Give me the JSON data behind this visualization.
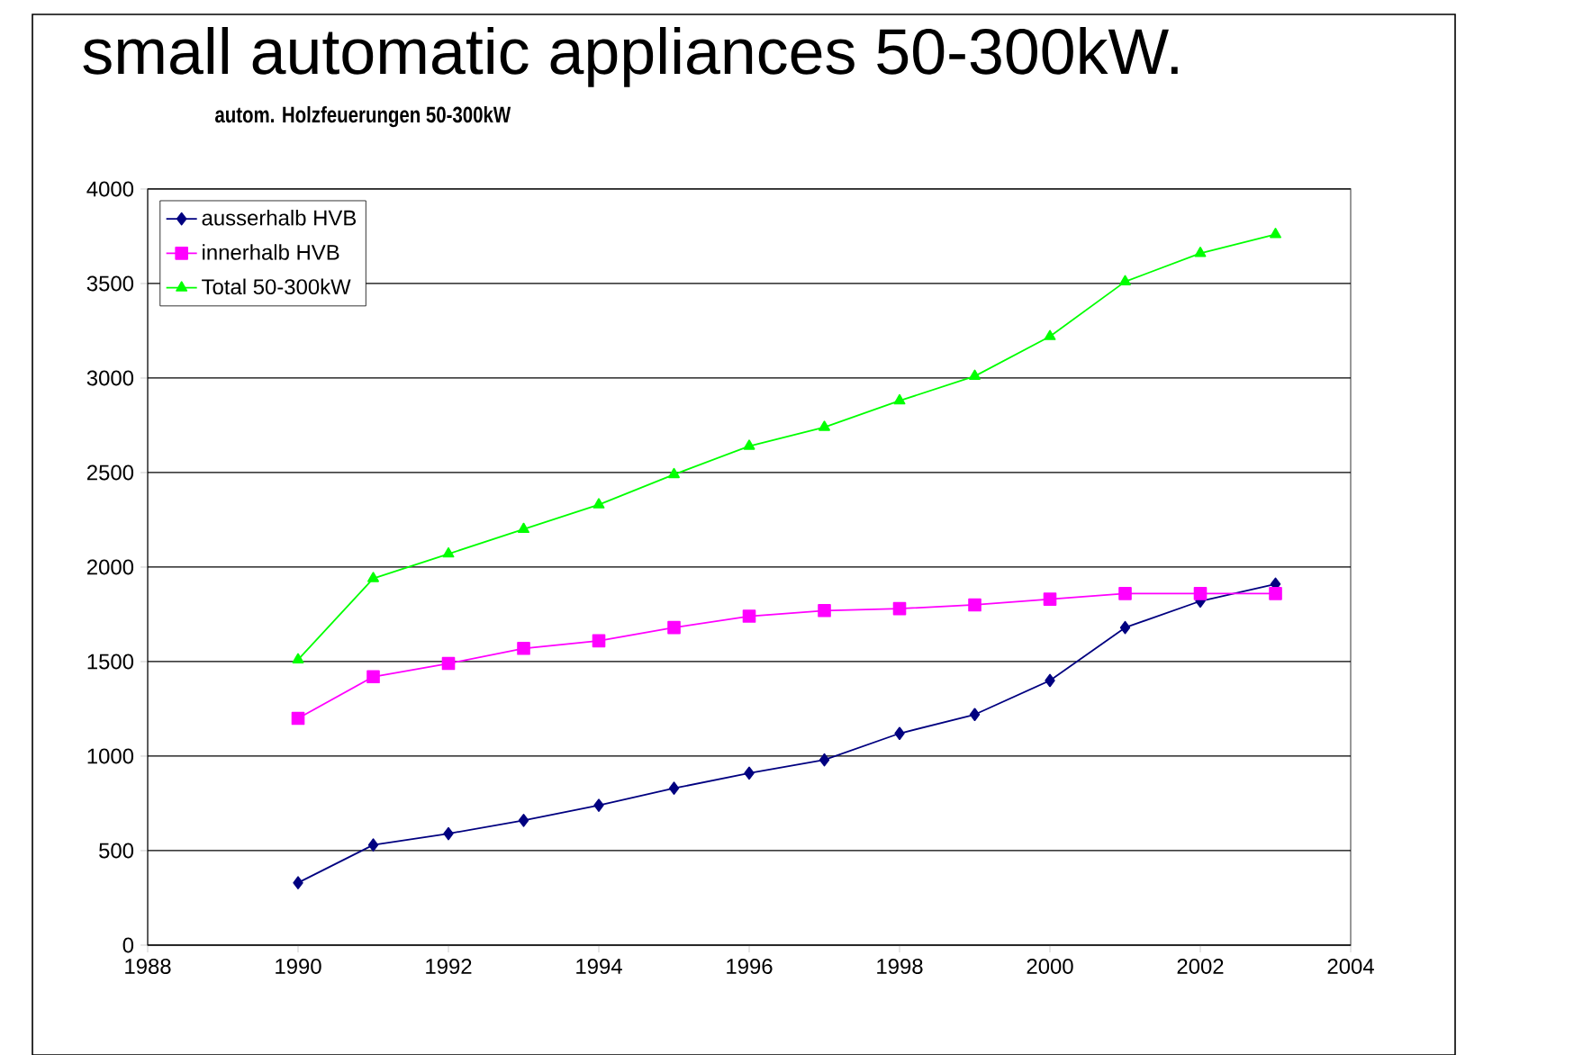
{
  "chart_data": {
    "type": "line",
    "title": "small automatic appliances 50-300kW.",
    "subtitle": "autom. Holzfeuerungen 50-300kW",
    "x": [
      1990,
      1991,
      1992,
      1993,
      1994,
      1995,
      1996,
      1997,
      1998,
      1999,
      2000,
      2001,
      2002,
      2003
    ],
    "series": [
      {
        "name": "ausserhalb HVB",
        "color": "#000080",
        "marker": "diamond",
        "values": [
          330,
          530,
          590,
          660,
          740,
          830,
          910,
          980,
          1120,
          1220,
          1400,
          1680,
          1820,
          1910
        ]
      },
      {
        "name": "innerhalb HVB",
        "color": "#ff00ff",
        "marker": "square",
        "values": [
          1200,
          1420,
          1490,
          1570,
          1610,
          1680,
          1740,
          1770,
          1780,
          1800,
          1830,
          1860,
          1860,
          1860
        ]
      },
      {
        "name": "Total 50-300kW",
        "color": "#00ff00",
        "marker": "triangle",
        "values": [
          1510,
          1940,
          2070,
          2200,
          2330,
          2490,
          2640,
          2740,
          2880,
          3010,
          3220,
          3510,
          3660,
          3760
        ]
      }
    ],
    "xlim": [
      1988,
      2004
    ],
    "xticks": [
      1988,
      1990,
      1992,
      1994,
      1996,
      1998,
      2000,
      2002,
      2004
    ],
    "ylim": [
      0,
      4000
    ],
    "yticks": [
      0,
      500,
      1000,
      1500,
      2000,
      2500,
      3000,
      3500,
      4000
    ],
    "grid": "y",
    "legend": "top left",
    "line_style": "solid"
  }
}
